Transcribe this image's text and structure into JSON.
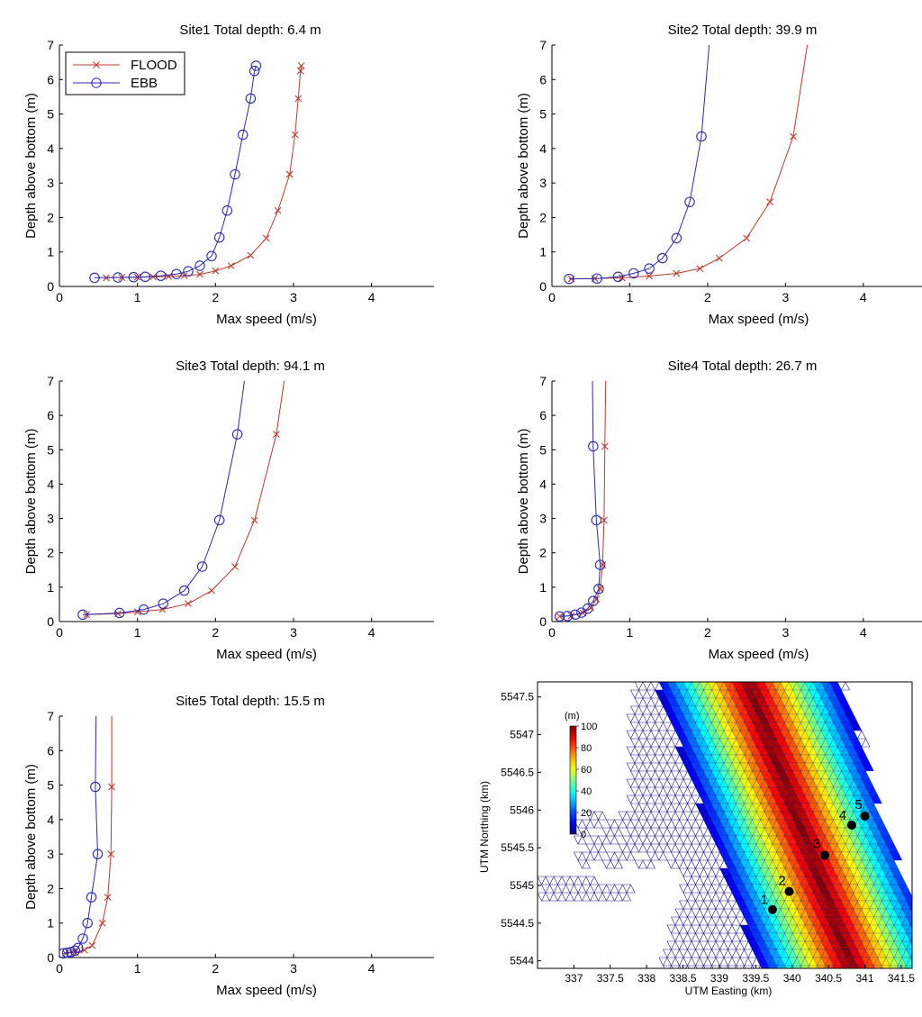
{
  "colors": {
    "flood": "#c0392b",
    "ebb": "#2a2ab0",
    "axis": "#000000",
    "mesh": "#1a1a8c",
    "land": "#ffffff"
  },
  "chart_data": [
    {
      "type": "line",
      "title": "Site1 Total depth: 6.4 m",
      "xlabel": "Max speed (m/s)",
      "ylabel": "Depth above bottom (m)",
      "xlim": [
        0,
        4.8
      ],
      "ylim": [
        0,
        7
      ],
      "xticks": [
        "0",
        "1",
        "2",
        "3",
        "4"
      ],
      "yticks": [
        "0",
        "1",
        "2",
        "3",
        "4",
        "5",
        "6",
        "7"
      ],
      "legend": {
        "position": "top-left",
        "entries": [
          "FLOOD",
          "EBB"
        ]
      },
      "series": [
        {
          "name": "FLOOD",
          "marker": "x",
          "x": [
            0.6,
            0.8,
            1.0,
            1.2,
            1.4,
            1.6,
            1.8,
            2.0,
            2.2,
            2.45,
            2.65,
            2.8,
            2.95,
            3.02,
            3.06,
            3.09,
            3.1
          ],
          "y": [
            0.25,
            0.26,
            0.27,
            0.28,
            0.29,
            0.31,
            0.35,
            0.45,
            0.6,
            0.9,
            1.4,
            2.2,
            3.25,
            4.4,
            5.45,
            6.25,
            6.4
          ]
        },
        {
          "name": "EBB",
          "marker": "o",
          "x": [
            0.45,
            0.75,
            0.95,
            1.1,
            1.3,
            1.5,
            1.65,
            1.8,
            1.95,
            2.05,
            2.15,
            2.25,
            2.35,
            2.45,
            2.5,
            2.52
          ],
          "y": [
            0.25,
            0.26,
            0.27,
            0.28,
            0.31,
            0.36,
            0.44,
            0.6,
            0.88,
            1.42,
            2.2,
            3.25,
            4.4,
            5.45,
            6.25,
            6.4
          ]
        }
      ]
    },
    {
      "type": "line",
      "title": "Site2 Total depth: 39.9 m",
      "xlabel": "Max speed (m/s)",
      "ylabel": "Depth above bottom (m)",
      "xlim": [
        0,
        4.8
      ],
      "ylim": [
        0,
        7
      ],
      "xticks": [
        "0",
        "1",
        "2",
        "3",
        "4"
      ],
      "yticks": [
        "0",
        "1",
        "2",
        "3",
        "4",
        "5",
        "6",
        "7"
      ],
      "series": [
        {
          "name": "FLOOD",
          "marker": "x",
          "x": [
            0.25,
            0.55,
            0.9,
            1.25,
            1.6,
            1.9,
            2.15,
            2.5,
            2.8,
            3.1,
            3.28
          ],
          "y": [
            0.22,
            0.23,
            0.25,
            0.3,
            0.38,
            0.52,
            0.82,
            1.4,
            2.45,
            4.35,
            7.0
          ]
        },
        {
          "name": "EBB",
          "marker": "o",
          "x": [
            0.22,
            0.58,
            0.85,
            1.05,
            1.25,
            1.42,
            1.6,
            1.77,
            1.92,
            2.02
          ],
          "y": [
            0.22,
            0.23,
            0.28,
            0.38,
            0.52,
            0.82,
            1.4,
            2.45,
            4.35,
            7.0
          ]
        }
      ]
    },
    {
      "type": "line",
      "title": "Site3 Total depth: 94.1 m",
      "xlabel": "Max speed (m/s)",
      "ylabel": "Depth above bottom (m)",
      "xlim": [
        0,
        4.8
      ],
      "ylim": [
        0,
        7
      ],
      "xticks": [
        "0",
        "1",
        "2",
        "3",
        "4"
      ],
      "yticks": [
        "0",
        "1",
        "2",
        "3",
        "4",
        "5",
        "6",
        "7"
      ],
      "series": [
        {
          "name": "FLOOD",
          "marker": "x",
          "x": [
            0.35,
            0.75,
            1.0,
            1.32,
            1.65,
            1.95,
            2.25,
            2.5,
            2.78,
            2.88
          ],
          "y": [
            0.2,
            0.23,
            0.28,
            0.35,
            0.52,
            0.9,
            1.6,
            2.95,
            5.45,
            7.0
          ]
        },
        {
          "name": "EBB",
          "marker": "o",
          "x": [
            0.3,
            0.77,
            1.08,
            1.33,
            1.6,
            1.83,
            2.05,
            2.28,
            2.37
          ],
          "y": [
            0.2,
            0.25,
            0.35,
            0.52,
            0.9,
            1.6,
            2.95,
            5.45,
            7.0
          ]
        }
      ]
    },
    {
      "type": "line",
      "title": "Site4 Total depth: 26.7 m",
      "xlabel": "Max speed (m/s)",
      "ylabel": "Depth above bottom (m)",
      "xlim": [
        0,
        4.8
      ],
      "ylim": [
        0,
        7
      ],
      "xticks": [
        "0",
        "1",
        "2",
        "3",
        "4"
      ],
      "yticks": [
        "0",
        "1",
        "2",
        "3",
        "4",
        "5",
        "6",
        "7"
      ],
      "series": [
        {
          "name": "FLOOD",
          "marker": "x",
          "x": [
            0.1,
            0.25,
            0.4,
            0.5,
            0.57,
            0.62,
            0.65,
            0.67,
            0.68,
            0.69
          ],
          "y": [
            0.15,
            0.17,
            0.25,
            0.4,
            0.65,
            0.95,
            1.65,
            2.95,
            5.1,
            7.0
          ]
        },
        {
          "name": "EBB",
          "marker": "o",
          "x": [
            0.1,
            0.2,
            0.3,
            0.38,
            0.46,
            0.53,
            0.6,
            0.62,
            0.57,
            0.53,
            0.52
          ],
          "y": [
            0.15,
            0.16,
            0.2,
            0.26,
            0.38,
            0.6,
            0.95,
            1.65,
            2.95,
            5.1,
            7.0
          ]
        }
      ]
    },
    {
      "type": "line",
      "title": "Site5 Total depth: 15.5 m",
      "xlabel": "Max speed (m/s)",
      "ylabel": "Depth above bottom (m)",
      "xlim": [
        0,
        4.8
      ],
      "ylim": [
        0,
        7
      ],
      "xticks": [
        "0",
        "1",
        "2",
        "3",
        "4"
      ],
      "yticks": [
        "0",
        "1",
        "2",
        "3",
        "4",
        "5",
        "6",
        "7"
      ],
      "series": [
        {
          "name": "FLOOD",
          "marker": "x",
          "x": [
            0.08,
            0.2,
            0.32,
            0.42,
            0.55,
            0.62,
            0.66,
            0.67,
            0.67
          ],
          "y": [
            0.12,
            0.15,
            0.22,
            0.35,
            1.0,
            1.75,
            3.0,
            4.95,
            7.0
          ]
        },
        {
          "name": "EBB",
          "marker": "o",
          "x": [
            0.05,
            0.1,
            0.15,
            0.2,
            0.24,
            0.3,
            0.36,
            0.41,
            0.49,
            0.46,
            0.47
          ],
          "y": [
            0.12,
            0.14,
            0.16,
            0.2,
            0.28,
            0.55,
            1.0,
            1.75,
            3.0,
            4.95,
            7.0
          ]
        }
      ]
    },
    {
      "type": "heatmap",
      "title": "",
      "xlabel": "UTM Easting (km)",
      "ylabel": "UTM Northing (km)",
      "xlim": [
        336.5,
        341.65
      ],
      "ylim": [
        5543.9,
        5547.7
      ],
      "xticks": [
        "337",
        "337.5",
        "338",
        "338.5",
        "339",
        "339.5",
        "340",
        "340.5",
        "341",
        "341.5"
      ],
      "yticks": [
        "5544",
        "5544.5",
        "5545",
        "5545.5",
        "5546",
        "5546.5",
        "5547",
        "5547.5"
      ],
      "colorbar": {
        "label": "(m)",
        "min": 0,
        "max": 100,
        "ticks": [
          "100",
          "80",
          "60",
          "40",
          "20",
          "0"
        ]
      },
      "sites": [
        {
          "label": "1",
          "x": 339.73,
          "y": 5544.68
        },
        {
          "label": "2",
          "x": 339.96,
          "y": 5544.92
        },
        {
          "label": "3",
          "x": 340.45,
          "y": 5545.4
        },
        {
          "label": "4",
          "x": 340.82,
          "y": 5545.8
        },
        {
          "label": "5",
          "x": 341.0,
          "y": 5545.92
        }
      ]
    }
  ]
}
